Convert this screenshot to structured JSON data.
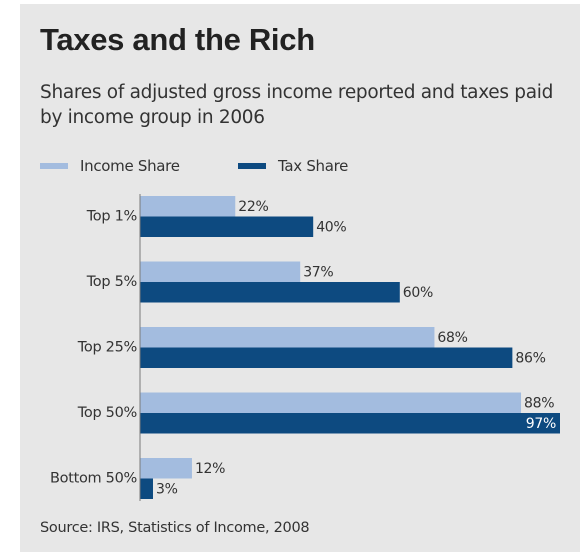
{
  "title": "Taxes and the Rich",
  "subtitle": "Shares of adjusted gross income reported and taxes paid by income group in 2006",
  "source": "Source: IRS, Statistics of Income, 2008",
  "colors": {
    "background": "#e7e7e7",
    "income_share": "#a3bcdf",
    "tax_share": "#0d4a80",
    "text": "#333333"
  },
  "chart_data": {
    "type": "bar",
    "orientation": "horizontal",
    "categories": [
      "Top 1%",
      "Top 5%",
      "Top 25%",
      "Top 50%",
      "Bottom 50%"
    ],
    "series": [
      {
        "name": "Income Share",
        "values": [
          22,
          37,
          68,
          88,
          12
        ],
        "labels": [
          "22%",
          "37%",
          "68%",
          "88%",
          "12%"
        ]
      },
      {
        "name": "Tax Share",
        "values": [
          40,
          60,
          86,
          97,
          3
        ],
        "labels": [
          "40%",
          "60%",
          "86%",
          "97%",
          "3%"
        ]
      }
    ],
    "xlim": [
      0,
      97
    ],
    "legend_position": "top-left",
    "grid": false
  }
}
